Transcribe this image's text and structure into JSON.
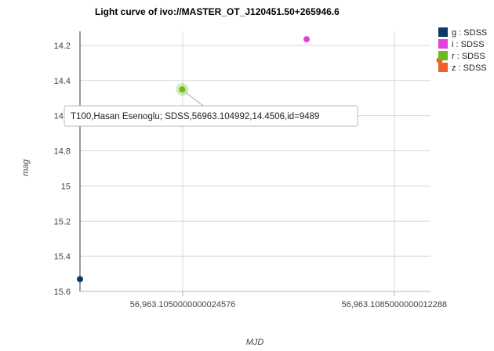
{
  "chart_data": {
    "type": "scatter",
    "title": "Light curve of ivo://MASTER_OT_J120451.50+265946.6",
    "xlabel": "MJD",
    "ylabel": "mag",
    "xlim": [
      56963.1033,
      56963.1091
    ],
    "ylim": [
      15.6,
      14.12
    ],
    "y_reversed": true,
    "grid": true,
    "x_ticks": [
      {
        "value": 56963.105,
        "label": "56,963.1050000000024576"
      },
      {
        "value": 56963.1085,
        "label": "56,963.1085000000012288"
      }
    ],
    "y_ticks": [
      {
        "value": 14.2,
        "label": "14.2"
      },
      {
        "value": 14.4,
        "label": "14.4"
      },
      {
        "value": 14.6,
        "label": "14.6"
      },
      {
        "value": 14.8,
        "label": "14.8"
      },
      {
        "value": 15,
        "label": "15"
      },
      {
        "value": 15.2,
        "label": "15.2"
      },
      {
        "value": 15.4,
        "label": "15.4"
      },
      {
        "value": 15.6,
        "label": "15.6"
      }
    ],
    "legend_position": "right",
    "series": [
      {
        "name": "g : SDSS",
        "color": "#0d3a66",
        "points": [
          {
            "x": 56963.1033,
            "y": 15.53
          }
        ]
      },
      {
        "name": "i : SDSS",
        "color": "#e040e0",
        "points": [
          {
            "x": 56963.10705,
            "y": 14.165
          }
        ]
      },
      {
        "name": "r : SDSS",
        "color": "#6cbb1e",
        "points": [
          {
            "x": 56963.104992,
            "y": 14.4506
          }
        ]
      },
      {
        "name": "z : SDSS",
        "color": "#f0602a",
        "points": [
          {
            "x": 56963.10925,
            "y": 14.285
          }
        ]
      }
    ],
    "tooltip": {
      "text": "T100,Hasan Esenoglu; SDSS,56963.104992,14.4506,id=9489",
      "series_index": 2,
      "point_index": 0
    }
  }
}
